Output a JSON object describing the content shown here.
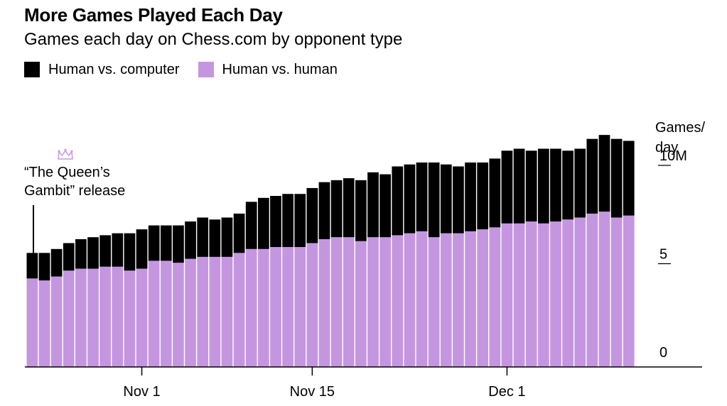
{
  "header": {
    "title": "More Games Played Each Day",
    "subtitle": "Games each day on Chess.com by opponent type"
  },
  "legend": {
    "computer_label": "Human vs. computer",
    "human_label": "Human vs. human"
  },
  "annotation": {
    "line1": "“The Queen’s",
    "line2": "Gambit” release"
  },
  "axis": {
    "unit_line1": "Games/",
    "unit_line2": "day"
  },
  "colors": {
    "computer": "#000000",
    "human": "#c596e0",
    "crown": "#c596e0"
  },
  "chart_data": {
    "type": "bar",
    "stacked": true,
    "title": "More Games Played Each Day",
    "subtitle": "Games each day on Chess.com by opponent type",
    "ylabel": "Games/day",
    "ylim": [
      0,
      12
    ],
    "y_ticks": [
      {
        "value": 0,
        "label": "0"
      },
      {
        "value": 5,
        "label": "5"
      },
      {
        "value": 10,
        "label": "10M"
      }
    ],
    "x_ticks": [
      {
        "index": 9,
        "label": "Nov 1"
      },
      {
        "index": 23,
        "label": "Nov 15"
      },
      {
        "index": 39,
        "label": "Dec 1"
      }
    ],
    "annotation": {
      "index": 0,
      "text": "“The Queen’s Gambit” release"
    },
    "series": [
      {
        "name": "Human vs. human",
        "values": [
          4.5,
          4.4,
          4.6,
          4.9,
          5.0,
          5.0,
          5.1,
          5.1,
          4.9,
          5.0,
          5.4,
          5.4,
          5.3,
          5.5,
          5.6,
          5.6,
          5.6,
          5.8,
          6.0,
          6.0,
          6.1,
          6.1,
          6.1,
          6.3,
          6.5,
          6.6,
          6.6,
          6.4,
          6.6,
          6.6,
          6.7,
          6.8,
          6.9,
          6.6,
          6.8,
          6.8,
          6.9,
          7.0,
          7.1,
          7.3,
          7.3,
          7.4,
          7.3,
          7.4,
          7.5,
          7.6,
          7.8,
          7.9,
          7.6,
          7.7
        ]
      },
      {
        "name": "Human vs. computer",
        "values": [
          1.3,
          1.4,
          1.4,
          1.4,
          1.5,
          1.6,
          1.6,
          1.7,
          1.9,
          2.0,
          1.8,
          1.8,
          1.9,
          1.9,
          2.0,
          1.9,
          2.0,
          2.0,
          2.4,
          2.6,
          2.6,
          2.7,
          2.7,
          2.8,
          2.9,
          2.9,
          3.0,
          3.1,
          3.3,
          3.2,
          3.5,
          3.5,
          3.5,
          3.8,
          3.5,
          3.4,
          3.5,
          3.4,
          3.5,
          3.7,
          3.8,
          3.6,
          3.8,
          3.7,
          3.5,
          3.5,
          3.8,
          3.9,
          4.0,
          3.8
        ]
      }
    ]
  }
}
